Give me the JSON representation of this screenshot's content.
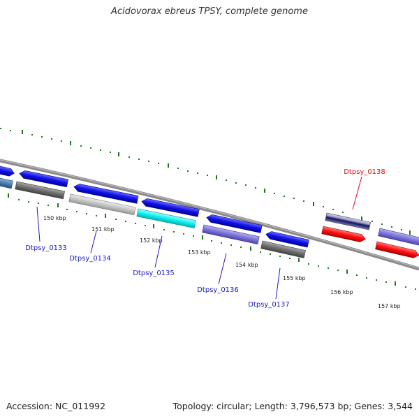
{
  "title": "Acidovorax ebreus TPSY, complete genome",
  "footer": {
    "accession": "Accession: NC_011992",
    "summary": "Topology: circular; Length: 3,796,573 bp; Genes: 3,544"
  },
  "colors": {
    "tick": "#1a7a1a",
    "backbone": "#8a8a8a",
    "label_blue": "#1a1ac8",
    "label_red": "#e01010"
  },
  "scale": {
    "tick_labels": [
      "150 kbp",
      "151 kbp",
      "152 kbp",
      "153 kbp",
      "154 kbp",
      "155 kbp",
      "156 kbp",
      "157 kbp"
    ]
  },
  "gene_labels": [
    {
      "name": "Dtpsy_0133",
      "color": "blue"
    },
    {
      "name": "Dtpsy_0134",
      "color": "blue"
    },
    {
      "name": "Dtpsy_0135",
      "color": "blue"
    },
    {
      "name": "Dtpsy_0136",
      "color": "blue"
    },
    {
      "name": "Dtpsy_0137",
      "color": "blue"
    },
    {
      "name": "Dtpsy_0138",
      "color": "red"
    }
  ]
}
